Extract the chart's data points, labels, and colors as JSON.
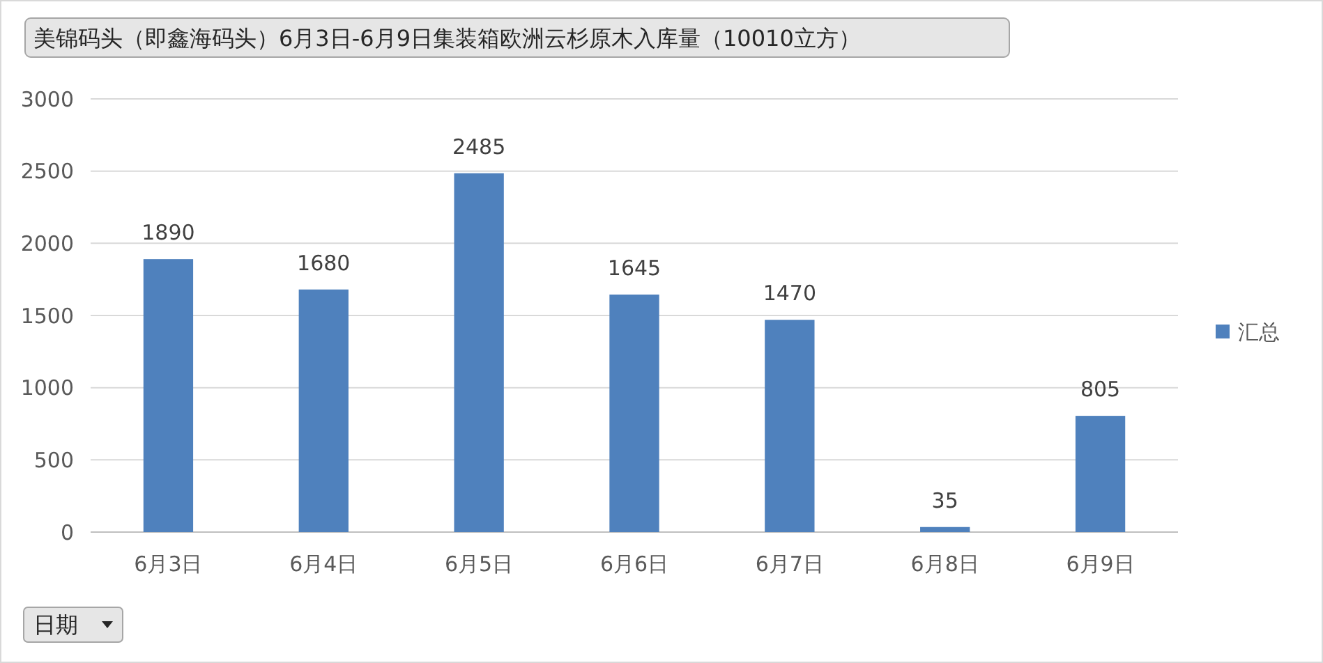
{
  "chart_data": {
    "type": "bar",
    "title": "美锦码头（即鑫海码头）6月3日-6月9日集装箱欧洲云杉原木入库量（10010立方）",
    "categories": [
      "6月3日",
      "6月4日",
      "6月5日",
      "6月6日",
      "6月7日",
      "6月8日",
      "6月9日"
    ],
    "series": [
      {
        "name": "汇总",
        "color": "#4f81bd",
        "values": [
          1890,
          1680,
          2485,
          1645,
          1470,
          35,
          805
        ]
      }
    ],
    "ylim": [
      0,
      3000
    ],
    "yticks": [
      0,
      500,
      1000,
      1500,
      2000,
      2500,
      3000
    ],
    "grid": "y",
    "legend": "right",
    "data_labels": true,
    "annotations": [
      "日期"
    ]
  }
}
